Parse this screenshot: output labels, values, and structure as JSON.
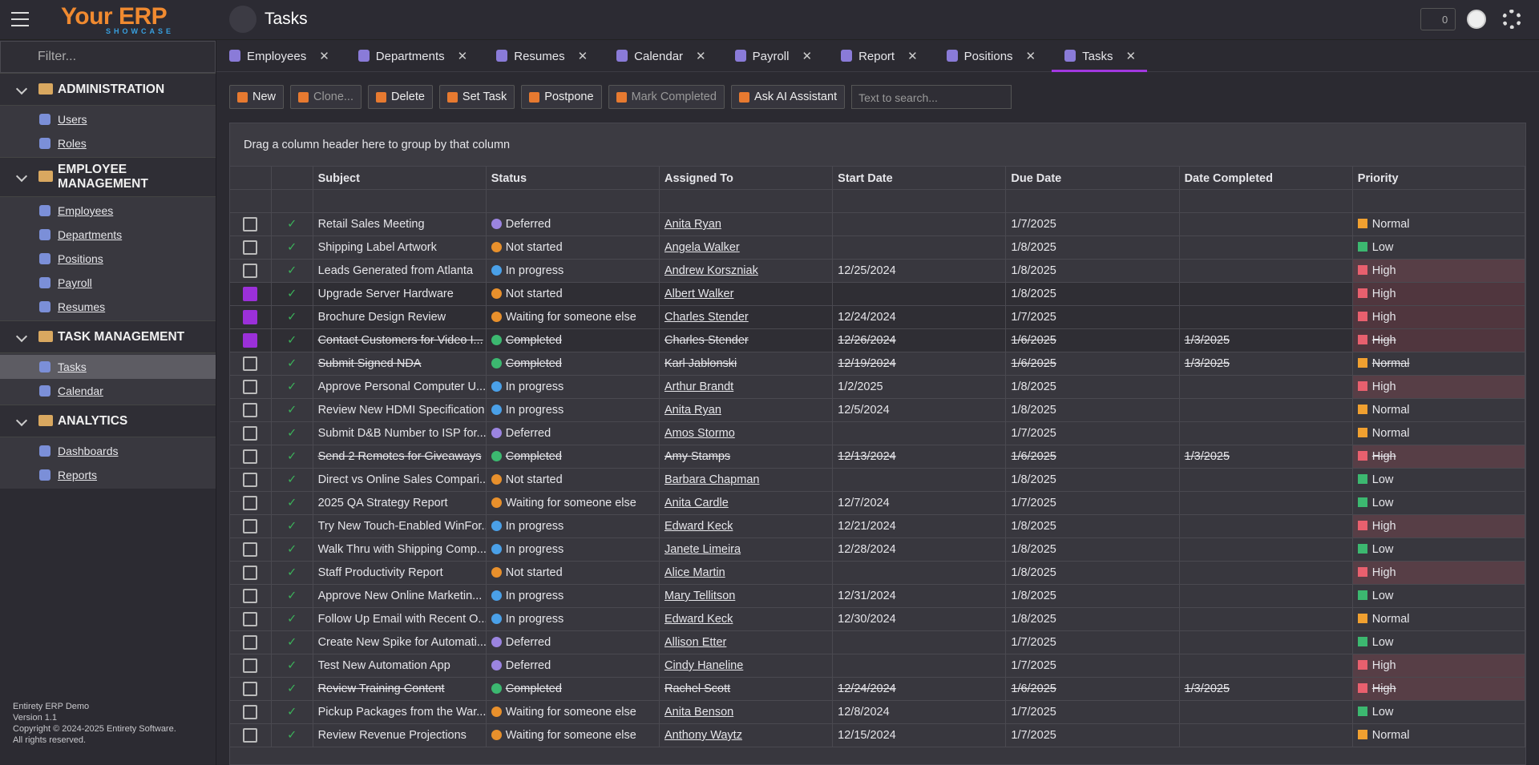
{
  "header": {
    "app_name": "Your ERP",
    "app_sub": "SHOWCASE",
    "page_title": "Tasks",
    "notifications": 0
  },
  "sidebar": {
    "filter_placeholder": "Filter...",
    "groups": [
      {
        "title": "ADMINISTRATION",
        "items": [
          "Users",
          "Roles"
        ]
      },
      {
        "title": "EMPLOYEE MANAGEMENT",
        "items": [
          "Employees",
          "Departments",
          "Positions",
          "Payroll",
          "Resumes"
        ]
      },
      {
        "title": "TASK MANAGEMENT",
        "items": [
          "Tasks",
          "Calendar"
        ],
        "active_item": 0
      },
      {
        "title": "ANALYTICS",
        "items": [
          "Dashboards",
          "Reports"
        ]
      }
    ],
    "footer": [
      "Entirety ERP Demo",
      "Version 1.1",
      "Copyright © 2024-2025 Entirety Software.",
      "All rights reserved."
    ]
  },
  "tabs": {
    "items": [
      "Employees",
      "Departments",
      "Resumes",
      "Calendar",
      "Payroll",
      "Report",
      "Positions",
      "Tasks"
    ],
    "active": 7
  },
  "toolbar": {
    "buttons": [
      "New",
      "Clone...",
      "Delete",
      "Set Task",
      "Postpone",
      "Mark Completed",
      "Ask AI Assistant"
    ],
    "disabled": [
      1,
      5
    ],
    "search_placeholder": "Text to search..."
  },
  "grid": {
    "group_hint": "Drag a column header here to group by that column",
    "columns": [
      "Subject",
      "Status",
      "Assigned To",
      "Start Date",
      "Due Date",
      "Date Completed",
      "Priority"
    ],
    "rows": [
      {
        "cells": [
          "Retail Sales Meeting",
          "Deferred",
          "Anita Ryan",
          null,
          "1/7/2025",
          null,
          "Normal"
        ],
        "icon": "#9b84e0",
        "flag": "#f0a030"
      },
      {
        "cells": [
          "Shipping Label Artwork",
          "Not started",
          "Angela Walker",
          null,
          "1/8/2025",
          null,
          "Low"
        ],
        "icon": "#e8902c",
        "flag": "#3cb870"
      },
      {
        "cells": [
          "Leads Generated from Atlanta",
          "In progress",
          "Andrew Korszniak",
          "12/25/2024",
          "1/8/2025",
          null,
          "High"
        ],
        "icon": "#4aa0e8",
        "flag": "#e8606e",
        "tint": true
      },
      {
        "cells": [
          "Upgrade Server Hardware",
          "Not started",
          "Albert Walker",
          null,
          "1/8/2025",
          null,
          "High"
        ],
        "icon": "#e8902c",
        "flag": "#e8606e",
        "tint": true,
        "selected": true
      },
      {
        "cells": [
          "Brochure Design Review",
          "Waiting for someone else",
          "Charles Stender",
          "12/24/2024",
          "1/7/2025",
          null,
          "High"
        ],
        "icon": "#e8902c",
        "flag": "#e8606e",
        "tint": true,
        "selected": true
      },
      {
        "cells": [
          "Contact Customers for Video I...",
          "Completed",
          "Charles Stender",
          "12/26/2024",
          "1/6/2025",
          "1/3/2025",
          "High"
        ],
        "icon": "#3cb870",
        "flag": "#e8606e",
        "tint": true,
        "selected": true,
        "done": true
      },
      {
        "cells": [
          "Submit Signed NDA",
          "Completed",
          "Karl Jablonski",
          "12/19/2024",
          "1/6/2025",
          "1/3/2025",
          "Normal"
        ],
        "icon": "#3cb870",
        "flag": "#f0a030",
        "done": true
      },
      {
        "cells": [
          "Approve Personal Computer U...",
          "In progress",
          "Arthur Brandt",
          "1/2/2025",
          "1/8/2025",
          null,
          "High"
        ],
        "icon": "#4aa0e8",
        "flag": "#e8606e",
        "tint": true
      },
      {
        "cells": [
          "Review New HDMI Specification",
          "In progress",
          "Anita Ryan",
          "12/5/2024",
          "1/8/2025",
          null,
          "Normal"
        ],
        "icon": "#4aa0e8",
        "flag": "#f0a030"
      },
      {
        "cells": [
          "Submit D&B Number to ISP for...",
          "Deferred",
          "Amos Stormo",
          null,
          "1/7/2025",
          null,
          "Normal"
        ],
        "icon": "#9b84e0",
        "flag": "#f0a030"
      },
      {
        "cells": [
          "Send 2 Remotes for Giveaways",
          "Completed",
          "Amy Stamps",
          "12/13/2024",
          "1/6/2025",
          "1/3/2025",
          "High"
        ],
        "icon": "#3cb870",
        "flag": "#e8606e",
        "tint": true,
        "done": true
      },
      {
        "cells": [
          "Direct vs Online Sales Compari...",
          "Not started",
          "Barbara Chapman",
          null,
          "1/8/2025",
          null,
          "Low"
        ],
        "icon": "#e8902c",
        "flag": "#3cb870"
      },
      {
        "cells": [
          "2025 QA Strategy Report",
          "Waiting for someone else",
          "Anita Cardle",
          "12/7/2024",
          "1/7/2025",
          null,
          "Low"
        ],
        "icon": "#e8902c",
        "flag": "#3cb870"
      },
      {
        "cells": [
          "Try New Touch-Enabled WinFor...",
          "In progress",
          "Edward Keck",
          "12/21/2024",
          "1/8/2025",
          null,
          "High"
        ],
        "icon": "#4aa0e8",
        "flag": "#e8606e",
        "tint": true
      },
      {
        "cells": [
          "Walk Thru with Shipping Comp...",
          "In progress",
          "Janete Limeira",
          "12/28/2024",
          "1/8/2025",
          null,
          "Low"
        ],
        "icon": "#4aa0e8",
        "flag": "#3cb870"
      },
      {
        "cells": [
          "Staff Productivity Report",
          "Not started",
          "Alice Martin",
          null,
          "1/8/2025",
          null,
          "High"
        ],
        "icon": "#e8902c",
        "flag": "#e8606e",
        "tint": true
      },
      {
        "cells": [
          "Approve New Online Marketin...",
          "In progress",
          "Mary Tellitson",
          "12/31/2024",
          "1/8/2025",
          null,
          "Low"
        ],
        "icon": "#4aa0e8",
        "flag": "#3cb870"
      },
      {
        "cells": [
          "Follow Up Email with Recent O...",
          "In progress",
          "Edward Keck",
          "12/30/2024",
          "1/8/2025",
          null,
          "Normal"
        ],
        "icon": "#4aa0e8",
        "flag": "#f0a030"
      },
      {
        "cells": [
          "Create New Spike for Automati...",
          "Deferred",
          "Allison Etter",
          null,
          "1/7/2025",
          null,
          "Low"
        ],
        "icon": "#9b84e0",
        "flag": "#3cb870"
      },
      {
        "cells": [
          "Test New Automation App",
          "Deferred",
          "Cindy Haneline",
          null,
          "1/7/2025",
          null,
          "High"
        ],
        "icon": "#9b84e0",
        "flag": "#e8606e",
        "tint": true
      },
      {
        "cells": [
          "Review Training Content",
          "Completed",
          "Rachel Scott",
          "12/24/2024",
          "1/6/2025",
          "1/3/2025",
          "High"
        ],
        "icon": "#3cb870",
        "flag": "#e8606e",
        "tint": true,
        "done": true
      },
      {
        "cells": [
          "Pickup Packages from the War...",
          "Waiting for someone else",
          "Anita Benson",
          "12/8/2024",
          "1/7/2025",
          null,
          "Low"
        ],
        "icon": "#e8902c",
        "flag": "#3cb870"
      },
      {
        "cells": [
          "Review Revenue Projections",
          "Waiting for someone else",
          "Anthony Waytz",
          "12/15/2024",
          "1/7/2025",
          null,
          "Normal"
        ],
        "icon": "#e8902c",
        "flag": "#f0a030"
      }
    ]
  }
}
